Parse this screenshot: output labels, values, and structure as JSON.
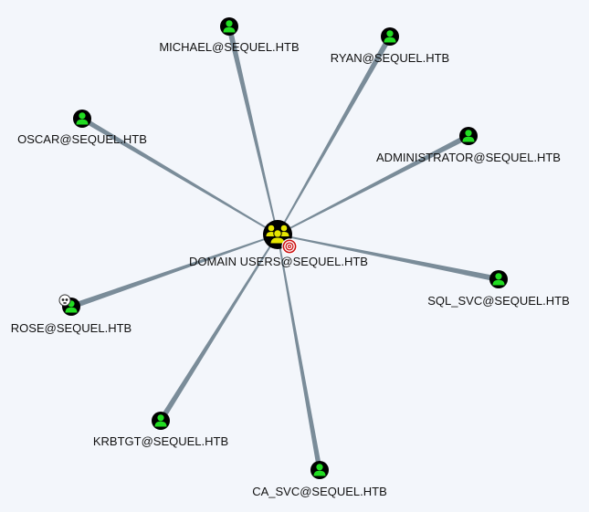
{
  "graph": {
    "colors": {
      "edge": "#7a8c99",
      "user_fill": "#22dd22",
      "group_fill": "#e6e600",
      "node_ring": "#000000",
      "target_badge": "#cc1111"
    },
    "center": {
      "id": "domain-users",
      "label": "DOMAIN USERS@SEQUEL.HTB",
      "icon": "group-icon",
      "badge": "target-icon"
    },
    "nodes": [
      {
        "id": "michael",
        "label": "MICHAEL@SEQUEL.HTB",
        "icon": "user-icon"
      },
      {
        "id": "ryan",
        "label": "RYAN@SEQUEL.HTB",
        "icon": "user-icon"
      },
      {
        "id": "oscar",
        "label": "OSCAR@SEQUEL.HTB",
        "icon": "user-icon"
      },
      {
        "id": "administrator",
        "label": "ADMINISTRATOR@SEQUEL.HTB",
        "icon": "user-icon"
      },
      {
        "id": "sql-svc",
        "label": "SQL_SVC@SEQUEL.HTB",
        "icon": "user-icon"
      },
      {
        "id": "rose",
        "label": "ROSE@SEQUEL.HTB",
        "icon": "user-icon",
        "badge": "skull-icon"
      },
      {
        "id": "krbtgt",
        "label": "KRBTGT@SEQUEL.HTB",
        "icon": "user-icon"
      },
      {
        "id": "ca-svc",
        "label": "CA_SVC@SEQUEL.HTB",
        "icon": "user-icon"
      }
    ]
  }
}
